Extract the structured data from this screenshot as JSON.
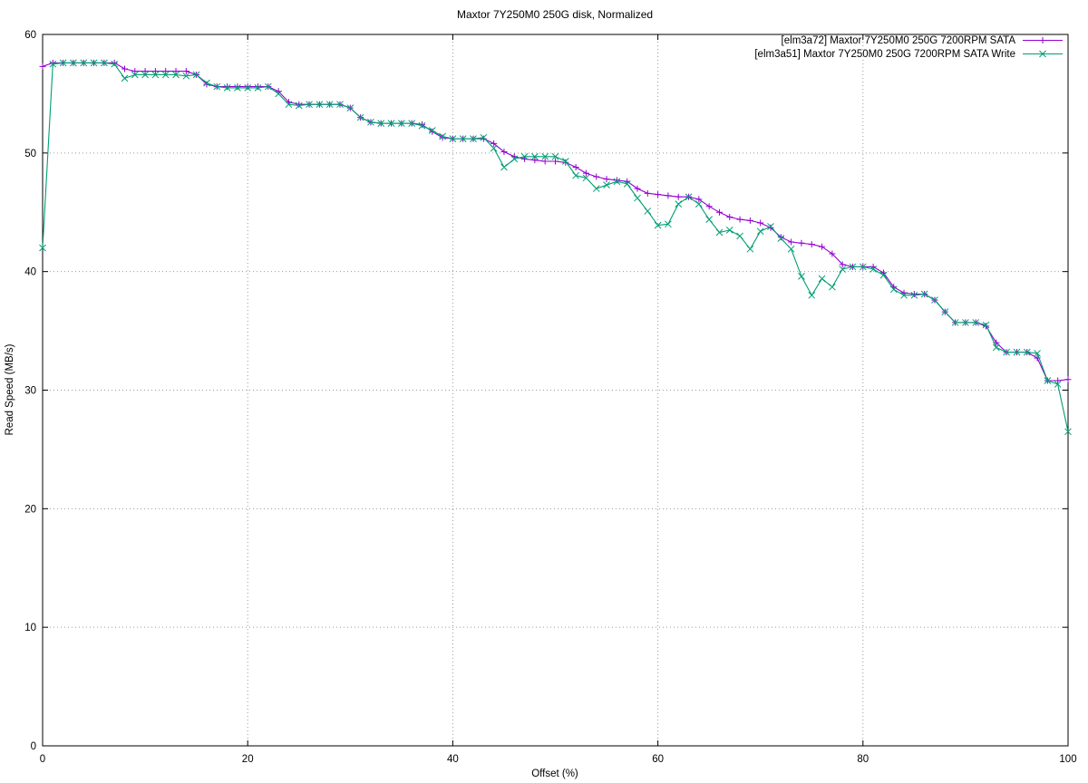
{
  "chart_data": {
    "type": "line",
    "title": "Maxtor 7Y250M0 250G disk, Normalized",
    "xlabel": "Offset (%)",
    "ylabel": "Read Speed (MB/s)",
    "xlim": [
      0,
      100
    ],
    "ylim": [
      0,
      60
    ],
    "xticks": [
      0,
      20,
      40,
      60,
      80,
      100
    ],
    "yticks": [
      0,
      10,
      20,
      30,
      40,
      50,
      60
    ],
    "grid": true,
    "grid_style": "dotted",
    "legend_position": "top-right-inside",
    "background_color": "#ffffff",
    "axis_color": "#000000",
    "grid_color": "#9a9a9a",
    "x": [
      0,
      1,
      2,
      3,
      4,
      5,
      6,
      7,
      8,
      9,
      10,
      11,
      12,
      13,
      14,
      15,
      16,
      17,
      18,
      19,
      20,
      21,
      22,
      23,
      24,
      25,
      26,
      27,
      28,
      29,
      30,
      31,
      32,
      33,
      34,
      35,
      36,
      37,
      38,
      39,
      40,
      41,
      42,
      43,
      44,
      45,
      46,
      47,
      48,
      49,
      50,
      51,
      52,
      53,
      54,
      55,
      56,
      57,
      58,
      59,
      60,
      61,
      62,
      63,
      64,
      65,
      66,
      67,
      68,
      69,
      70,
      71,
      72,
      73,
      74,
      75,
      76,
      77,
      78,
      79,
      80,
      81,
      82,
      83,
      84,
      85,
      86,
      87,
      88,
      89,
      90,
      91,
      92,
      93,
      94,
      95,
      96,
      97,
      98,
      99,
      100
    ],
    "series": [
      {
        "name": "[elm3a72] Maxtor 7Y250M0 250G 7200RPM SATA",
        "color": "#9400d3",
        "marker": "plus",
        "values": [
          57.3,
          57.6,
          57.6,
          57.6,
          57.6,
          57.6,
          57.6,
          57.6,
          57.1,
          56.9,
          56.9,
          56.9,
          56.9,
          56.9,
          56.9,
          56.6,
          55.8,
          55.6,
          55.6,
          55.6,
          55.6,
          55.6,
          55.6,
          55.2,
          54.3,
          54.1,
          54.1,
          54.1,
          54.1,
          54.1,
          53.8,
          53.0,
          52.6,
          52.5,
          52.5,
          52.5,
          52.5,
          52.4,
          51.8,
          51.3,
          51.2,
          51.2,
          51.2,
          51.2,
          50.8,
          50.1,
          49.7,
          49.5,
          49.4,
          49.3,
          49.3,
          49.2,
          48.8,
          48.3,
          48.0,
          47.8,
          47.7,
          47.6,
          47.0,
          46.6,
          46.5,
          46.4,
          46.3,
          46.3,
          46.1,
          45.5,
          45.0,
          44.6,
          44.4,
          44.3,
          44.1,
          43.7,
          42.9,
          42.5,
          42.4,
          42.3,
          42.1,
          41.5,
          40.6,
          40.4,
          40.4,
          40.4,
          39.9,
          38.7,
          38.2,
          38.1,
          38.1,
          37.6,
          36.6,
          35.7,
          35.7,
          35.7,
          35.4,
          34.0,
          33.2,
          33.2,
          33.2,
          32.7,
          30.8,
          30.8,
          30.9
        ]
      },
      {
        "name": "[elm3a51] Maxtor 7Y250M0 250G 7200RPM SATA Write",
        "color": "#009e73",
        "marker": "cross",
        "values": [
          42.0,
          57.5,
          57.6,
          57.6,
          57.6,
          57.6,
          57.6,
          57.5,
          56.3,
          56.6,
          56.6,
          56.6,
          56.6,
          56.6,
          56.5,
          56.6,
          55.9,
          55.6,
          55.5,
          55.5,
          55.5,
          55.5,
          55.6,
          55.0,
          54.1,
          54.0,
          54.1,
          54.1,
          54.1,
          54.1,
          53.8,
          53.0,
          52.6,
          52.5,
          52.5,
          52.5,
          52.5,
          52.3,
          51.9,
          51.4,
          51.2,
          51.2,
          51.2,
          51.3,
          50.4,
          48.8,
          49.5,
          49.7,
          49.7,
          49.7,
          49.7,
          49.3,
          48.1,
          47.9,
          47.0,
          47.3,
          47.6,
          47.4,
          46.2,
          45.1,
          43.9,
          44.0,
          45.7,
          46.3,
          45.7,
          44.4,
          43.3,
          43.5,
          43.0,
          41.9,
          43.4,
          43.8,
          42.8,
          41.9,
          39.6,
          38.0,
          39.4,
          38.7,
          40.2,
          40.4,
          40.4,
          40.2,
          39.7,
          38.5,
          38.0,
          38.0,
          38.1,
          37.6,
          36.6,
          35.7,
          35.7,
          35.7,
          35.5,
          33.6,
          33.2,
          33.2,
          33.2,
          33.1,
          30.8,
          30.5,
          26.5
        ]
      }
    ]
  }
}
